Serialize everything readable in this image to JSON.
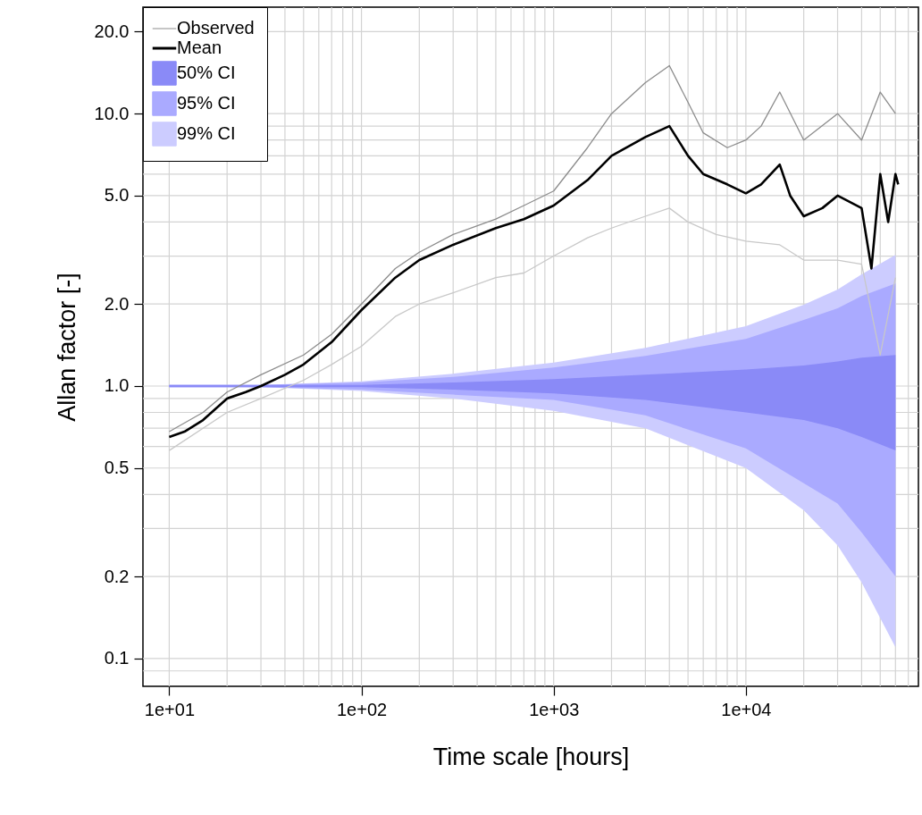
{
  "chart_data": {
    "type": "line",
    "xlabel": "Time scale [hours]",
    "ylabel": "Allan factor [-]",
    "log": "xy",
    "grid": true,
    "legend": "top left",
    "xlim": [
      7.3,
      79000
    ],
    "ylim": [
      0.079,
      24.6
    ],
    "xticks": [
      {
        "value": 10,
        "label": "1e+01"
      },
      {
        "value": 20,
        "label": null
      },
      {
        "value": 30,
        "label": null
      },
      {
        "value": 40,
        "label": null
      },
      {
        "value": 50,
        "label": null
      },
      {
        "value": 60,
        "label": null
      },
      {
        "value": 70,
        "label": null
      },
      {
        "value": 80,
        "label": null
      },
      {
        "value": 90,
        "label": null
      },
      {
        "value": 100,
        "label": "1e+02"
      },
      {
        "value": 200,
        "label": null
      },
      {
        "value": 300,
        "label": null
      },
      {
        "value": 400,
        "label": null
      },
      {
        "value": 500,
        "label": null
      },
      {
        "value": 600,
        "label": null
      },
      {
        "value": 700,
        "label": null
      },
      {
        "value": 800,
        "label": null
      },
      {
        "value": 900,
        "label": null
      },
      {
        "value": 1000,
        "label": "1e+03"
      },
      {
        "value": 2000,
        "label": null
      },
      {
        "value": 3000,
        "label": null
      },
      {
        "value": 4000,
        "label": null
      },
      {
        "value": 5000,
        "label": null
      },
      {
        "value": 6000,
        "label": null
      },
      {
        "value": 7000,
        "label": null
      },
      {
        "value": 8000,
        "label": null
      },
      {
        "value": 9000,
        "label": null
      },
      {
        "value": 10000,
        "label": "1e+04"
      },
      {
        "value": 20000,
        "label": null
      },
      {
        "value": 30000,
        "label": null
      },
      {
        "value": 40000,
        "label": null
      },
      {
        "value": 50000,
        "label": null
      },
      {
        "value": 60000,
        "label": null
      },
      {
        "value": 70000,
        "label": null
      }
    ],
    "yticks": [
      {
        "value": 0.09,
        "label": null
      },
      {
        "value": 0.1,
        "label": "0.1"
      },
      {
        "value": 0.2,
        "label": "0.2"
      },
      {
        "value": 0.3,
        "label": null
      },
      {
        "value": 0.4,
        "label": null
      },
      {
        "value": 0.5,
        "label": "0.5"
      },
      {
        "value": 0.6,
        "label": null
      },
      {
        "value": 0.7,
        "label": null
      },
      {
        "value": 0.8,
        "label": null
      },
      {
        "value": 0.9,
        "label": null
      },
      {
        "value": 1,
        "label": "1.0"
      },
      {
        "value": 2,
        "label": "2.0"
      },
      {
        "value": 3,
        "label": null
      },
      {
        "value": 4,
        "label": null
      },
      {
        "value": 5,
        "label": "5.0"
      },
      {
        "value": 6,
        "label": null
      },
      {
        "value": 7,
        "label": null
      },
      {
        "value": 8,
        "label": null
      },
      {
        "value": 9,
        "label": null
      },
      {
        "value": 10,
        "label": "10.0"
      },
      {
        "value": 20,
        "label": "20.0"
      }
    ],
    "series": [
      {
        "name": "Observed",
        "color": "#8c8c8c",
        "x": [
          10,
          15,
          20,
          30,
          50,
          70,
          100,
          150,
          200,
          300,
          500,
          700,
          1000,
          1500,
          2000,
          3000,
          4000,
          5000,
          6000,
          8000,
          10000,
          12000,
          15000,
          20000,
          30000,
          40000,
          50000,
          60000
        ],
        "values": [
          0.68,
          0.8,
          0.95,
          1.1,
          1.3,
          1.55,
          2.0,
          2.7,
          3.1,
          3.6,
          4.1,
          4.6,
          5.2,
          7.5,
          10,
          13,
          15,
          11,
          8.5,
          7.5,
          8,
          9,
          12,
          8,
          10,
          8,
          12,
          10
        ]
      },
      {
        "color": "#c8c8c8",
        "x": [
          10,
          20,
          30,
          50,
          70,
          100,
          150,
          200,
          300,
          500,
          700,
          1000,
          1500,
          2000,
          3000,
          4000,
          5000,
          7000,
          10000,
          15000,
          20000,
          30000,
          40000,
          50000,
          60000
        ],
        "values": [
          0.58,
          0.8,
          0.9,
          1.05,
          1.2,
          1.4,
          1.8,
          2.0,
          2.2,
          2.5,
          2.6,
          3.0,
          3.5,
          3.8,
          4.2,
          4.5,
          4.0,
          3.6,
          3.4,
          3.3,
          2.9,
          2.9,
          2.8,
          1.3,
          2.5
        ]
      },
      {
        "name": "99% CI",
        "color": "#ccccff",
        "x": [
          10,
          30,
          100,
          300,
          1000,
          3000,
          10000,
          20000,
          30000,
          40000,
          60000
        ],
        "values": [
          null,
          null,
          null,
          null,
          null,
          null,
          null,
          null,
          null,
          null,
          null
        ],
        "upper": [
          1.01,
          1.01,
          1.04,
          1.11,
          1.22,
          1.38,
          1.66,
          1.99,
          2.26,
          2.57,
          3.03
        ],
        "lower": [
          0.99,
          0.99,
          0.96,
          0.9,
          0.81,
          0.7,
          0.5,
          0.35,
          0.26,
          0.19,
          0.11
        ]
      },
      {
        "name": "95% CI",
        "color": "#aaaaff",
        "x": [
          10,
          30,
          100,
          300,
          1000,
          3000,
          10000,
          20000,
          30000,
          40000,
          60000
        ],
        "values": [
          null,
          null,
          null,
          null,
          null,
          null,
          null,
          null,
          null,
          null,
          null
        ],
        "upper": [
          1.01,
          1.01,
          1.03,
          1.08,
          1.17,
          1.29,
          1.49,
          1.75,
          1.93,
          2.14,
          2.38
        ],
        "lower": [
          0.99,
          0.99,
          0.97,
          0.93,
          0.89,
          0.78,
          0.59,
          0.44,
          0.37,
          0.29,
          0.2
        ]
      },
      {
        "name": "50% CI",
        "color": "#8a8af7",
        "x": [
          10,
          30,
          100,
          300,
          1000,
          3000,
          10000,
          20000,
          30000,
          40000,
          60000
        ],
        "values": [
          null,
          null,
          null,
          null,
          null,
          null,
          null,
          null,
          null,
          null,
          null
        ],
        "upper": [
          1.01,
          1.01,
          1.01,
          1.03,
          1.06,
          1.1,
          1.15,
          1.19,
          1.23,
          1.27,
          1.3
        ],
        "lower": [
          0.99,
          0.99,
          0.99,
          0.97,
          0.94,
          0.89,
          0.8,
          0.75,
          0.7,
          0.65,
          0.58
        ]
      },
      {
        "name": "Mean",
        "color": "#000000",
        "x": [
          10,
          12,
          15,
          20,
          25,
          30,
          40,
          50,
          70,
          100,
          150,
          200,
          300,
          500,
          700,
          1000,
          1500,
          2000,
          3000,
          4000,
          5000,
          6000,
          8000,
          10000,
          12000,
          15000,
          17000,
          20000,
          25000,
          30000,
          40000,
          45000,
          50000,
          55000,
          60000,
          62000
        ],
        "values": [
          0.65,
          0.68,
          0.75,
          0.9,
          0.95,
          1.0,
          1.1,
          1.2,
          1.45,
          1.9,
          2.5,
          2.9,
          3.3,
          3.8,
          4.1,
          4.6,
          5.7,
          7.0,
          8.2,
          9.0,
          7.0,
          6.0,
          5.5,
          5.1,
          5.5,
          6.5,
          5.0,
          4.2,
          4.5,
          5.0,
          4.5,
          2.7,
          6.0,
          4.0,
          6.0,
          5.5
        ]
      }
    ]
  }
}
